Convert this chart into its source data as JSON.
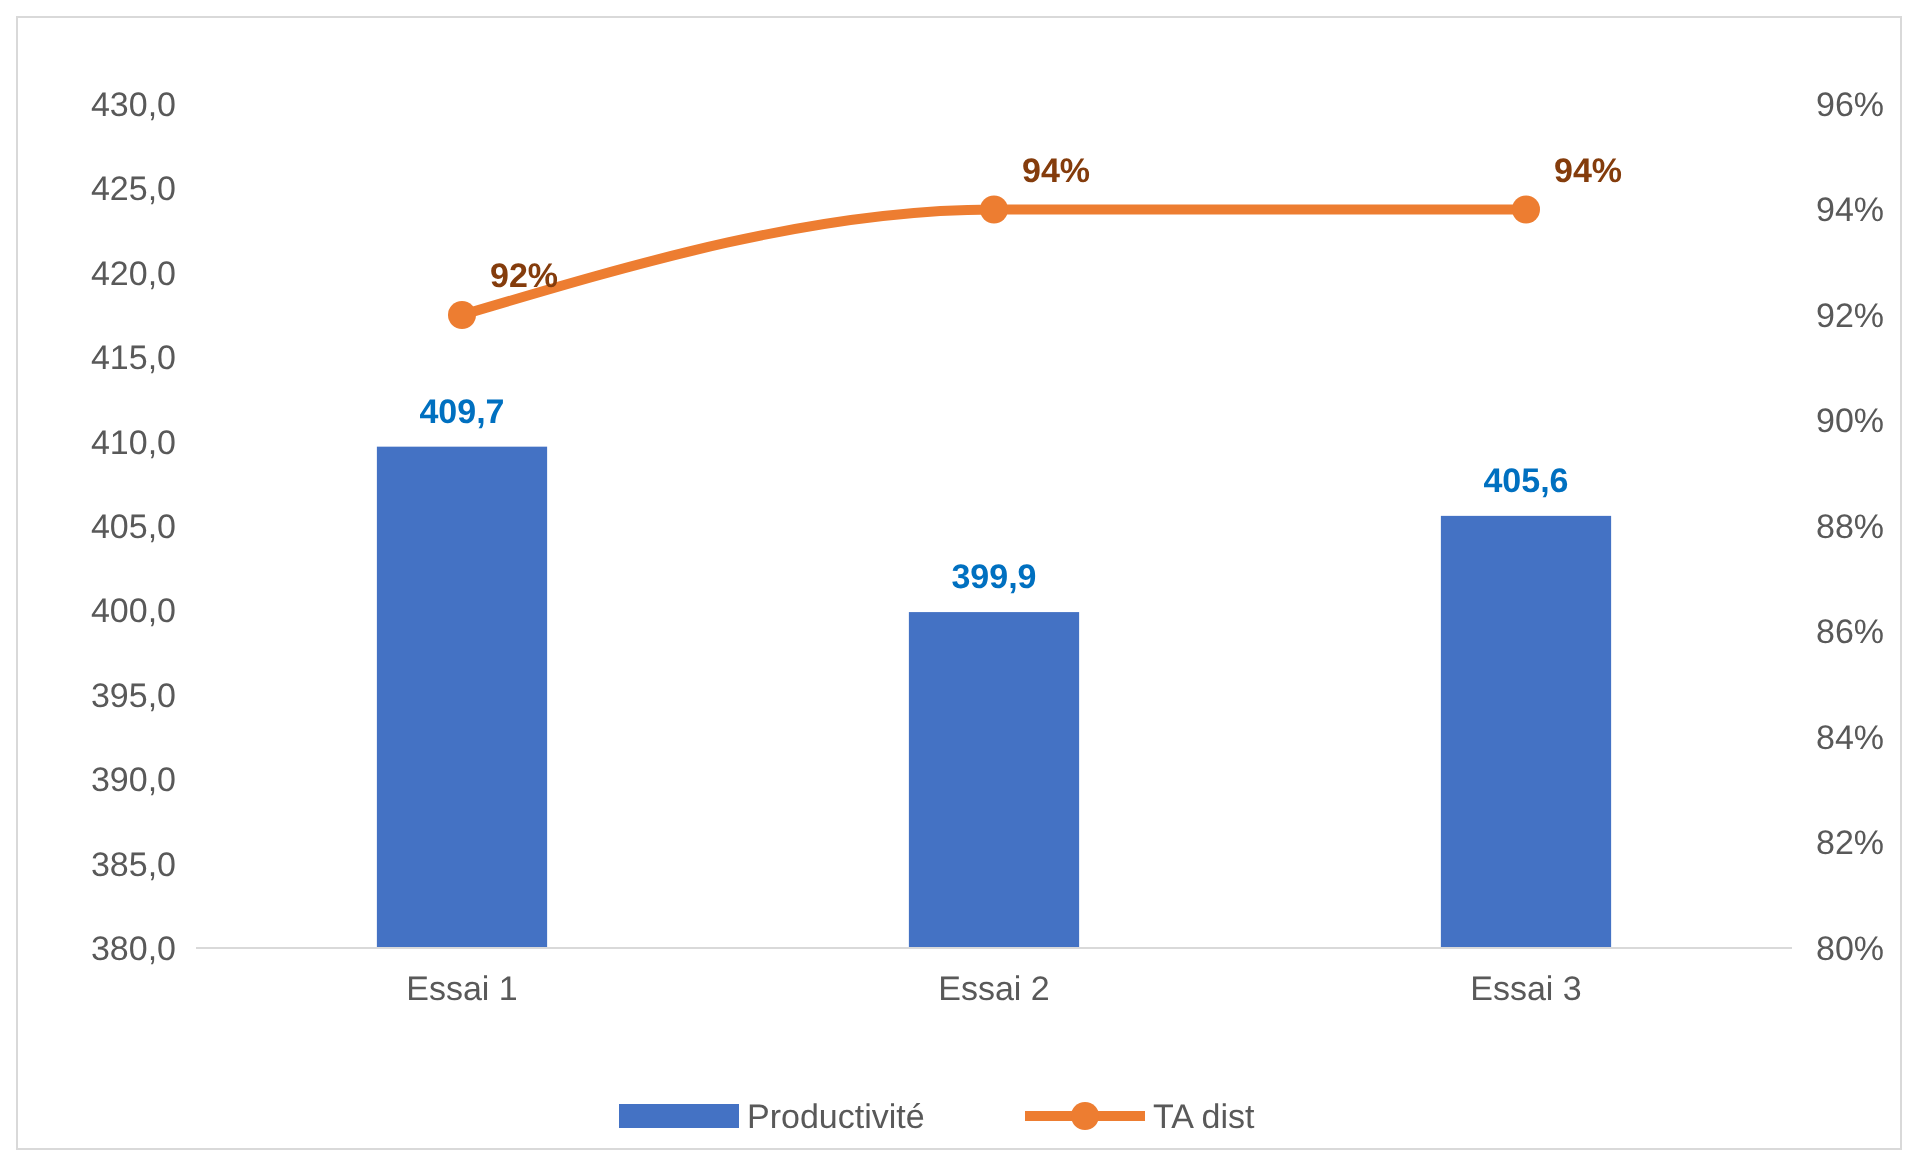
{
  "chart_data": {
    "type": "bar",
    "categories": [
      "Essai 1",
      "Essai 2",
      "Essai 3"
    ],
    "series": [
      {
        "name": "Productivité",
        "color": "#4472c4",
        "values": [
          409.7,
          399.9,
          405.6
        ],
        "value_labels": [
          "409,7",
          "399,9",
          "405,6"
        ]
      },
      {
        "name": "TA dist",
        "type": "line",
        "axis": "y2",
        "color": "#ed7d31",
        "values": [
          92,
          94,
          94
        ],
        "value_labels": [
          "92%",
          "94%",
          "94%"
        ],
        "marker": "circle"
      }
    ],
    "ylim": [
      380,
      430
    ],
    "yticks": [
      {
        "value": 380,
        "label": "380,0"
      },
      {
        "value": 385,
        "label": "385,0"
      },
      {
        "value": 390,
        "label": "390,0"
      },
      {
        "value": 395,
        "label": "395,0"
      },
      {
        "value": 400,
        "label": "400,0"
      },
      {
        "value": 405,
        "label": "405,0"
      },
      {
        "value": 410,
        "label": "410,0"
      },
      {
        "value": 415,
        "label": "415,0"
      },
      {
        "value": 420,
        "label": "420,0"
      },
      {
        "value": 425,
        "label": "425,0"
      },
      {
        "value": 430,
        "label": "430,0"
      }
    ],
    "y2lim": [
      80,
      96
    ],
    "y2ticks": [
      {
        "value": 80,
        "label": "80%"
      },
      {
        "value": 82,
        "label": "82%"
      },
      {
        "value": 84,
        "label": "84%"
      },
      {
        "value": 86,
        "label": "86%"
      },
      {
        "value": 88,
        "label": "88%"
      },
      {
        "value": 90,
        "label": "90%"
      },
      {
        "value": 92,
        "label": "92%"
      },
      {
        "value": 94,
        "label": "94%"
      },
      {
        "value": 96,
        "label": "96%"
      }
    ],
    "grid": false,
    "legend": "bottom"
  }
}
